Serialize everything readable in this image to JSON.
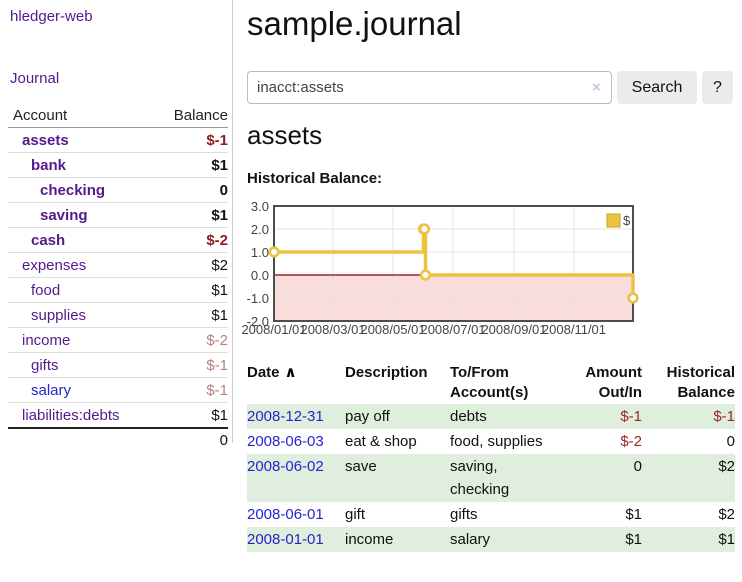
{
  "app": {
    "brand": "hledger-web"
  },
  "sidebar": {
    "journal_link": "Journal",
    "accounts_table": {
      "headers": {
        "account": "Account",
        "balance": "Balance"
      },
      "rows": [
        {
          "name": "assets",
          "balance": "$-1",
          "level": 1,
          "bold": true,
          "balance_class": "neg-strong",
          "link_color": "purple"
        },
        {
          "name": "bank",
          "balance": "$1",
          "level": 2,
          "bold": true,
          "balance_class": "pos",
          "link_color": "purple"
        },
        {
          "name": "checking",
          "balance": "0",
          "level": 3,
          "bold": true,
          "balance_class": "pos",
          "link_color": "purple"
        },
        {
          "name": "saving",
          "balance": "$1",
          "level": 3,
          "bold": true,
          "balance_class": "pos",
          "link_color": "purple"
        },
        {
          "name": "cash",
          "balance": "$-2",
          "level": 2,
          "bold": true,
          "balance_class": "neg-strong",
          "link_color": "purple"
        },
        {
          "name": "expenses",
          "balance": "$2",
          "level": 1,
          "bold": false,
          "balance_class": "pos",
          "link_color": "purple"
        },
        {
          "name": "food",
          "balance": "$1",
          "level": 2,
          "bold": false,
          "balance_class": "pos",
          "link_color": "purple"
        },
        {
          "name": "supplies",
          "balance": "$1",
          "level": 2,
          "bold": false,
          "balance_class": "pos",
          "link_color": "purple"
        },
        {
          "name": "income",
          "balance": "$-2",
          "level": 1,
          "bold": false,
          "balance_class": "neg-soft",
          "link_color": "purple"
        },
        {
          "name": "gifts",
          "balance": "$-1",
          "level": 2,
          "bold": false,
          "balance_class": "neg-soft",
          "link_color": "purple"
        },
        {
          "name": "salary",
          "balance": "$-1",
          "level": 2,
          "bold": false,
          "balance_class": "neg-soft",
          "link_color": "blue"
        },
        {
          "name": "liabilities:debts",
          "balance": "$1",
          "level": 1,
          "bold": false,
          "balance_class": "pos",
          "link_color": "purple"
        }
      ],
      "total": "0"
    }
  },
  "main": {
    "title": "sample.journal",
    "search": {
      "value": "inacct:assets",
      "clear_icon": "×",
      "search_button": "Search",
      "help_button": "?"
    },
    "account_heading": "assets",
    "chart_title": "Historical Balance:"
  },
  "chart_data": {
    "type": "line",
    "step_mode": true,
    "title": "Historical Balance",
    "ylim": [
      -2,
      3
    ],
    "x_range": [
      "2008/01/01",
      "2008/12/31"
    ],
    "y_ticks": [
      {
        "label": "3.0",
        "y": 3
      },
      {
        "label": "2.0",
        "y": 2
      },
      {
        "label": "1.0",
        "y": 1
      },
      {
        "label": "0.0",
        "y": 0
      },
      {
        "label": "-1.0",
        "y": -1
      },
      {
        "label": "-2.0",
        "y": -2
      }
    ],
    "x_ticks": [
      {
        "label": "2008/01/01",
        "x": "2008/01/01"
      },
      {
        "label": "2008/03/01",
        "x": "2008/03/01"
      },
      {
        "label": "2008/05/01",
        "x": "2008/05/01"
      },
      {
        "label": "2008/07/01",
        "x": "2008/07/01"
      },
      {
        "label": "2008/09/01",
        "x": "2008/09/01"
      },
      {
        "label": "2008/11/01",
        "x": "2008/11/01"
      }
    ],
    "series": [
      {
        "name": "$",
        "color": "#edc240",
        "points": [
          [
            "2008/01/01",
            1
          ],
          [
            "2008/06/01",
            2
          ],
          [
            "2008/06/02",
            2
          ],
          [
            "2008/06/03",
            0
          ],
          [
            "2008/12/31",
            -1
          ]
        ]
      }
    ],
    "grid": true,
    "legend_position": "top-right",
    "colors": {
      "grid": "#e5e5e5",
      "border": "#4d4d4d",
      "zero_line": "#8b0000",
      "negative_fill": "#f9dcdc",
      "legend_border": "#c7a22e",
      "tick_text": "#444444"
    }
  },
  "register": {
    "headers": {
      "date": "Date",
      "sort_caret": "∧",
      "description": "Description",
      "accounts": "To/From\nAccount(s)",
      "amount": "Amount\nOut/In",
      "balance": "Historical\nBalance"
    },
    "rows": [
      {
        "date": "2008-12-31",
        "description": "pay off",
        "accounts": "debts",
        "amount": "$-1",
        "amount_neg": true,
        "balance": "$-1",
        "balance_neg": true,
        "shade": true
      },
      {
        "date": "2008-06-03",
        "description": "eat & shop",
        "accounts": "food, supplies",
        "amount": "$-2",
        "amount_neg": true,
        "balance": "0",
        "balance_neg": false,
        "shade": false
      },
      {
        "date": "2008-06-02",
        "description": "save",
        "accounts": "saving,\nchecking",
        "amount": "0",
        "amount_neg": false,
        "balance": "$2",
        "balance_neg": false,
        "shade": true
      },
      {
        "date": "2008-06-01",
        "description": "gift",
        "accounts": "gifts",
        "amount": "$1",
        "amount_neg": false,
        "balance": "$2",
        "balance_neg": false,
        "shade": false
      },
      {
        "date": "2008-01-01",
        "description": "income",
        "accounts": "salary",
        "amount": "$1",
        "amount_neg": false,
        "balance": "$1",
        "balance_neg": false,
        "shade": true
      }
    ]
  }
}
